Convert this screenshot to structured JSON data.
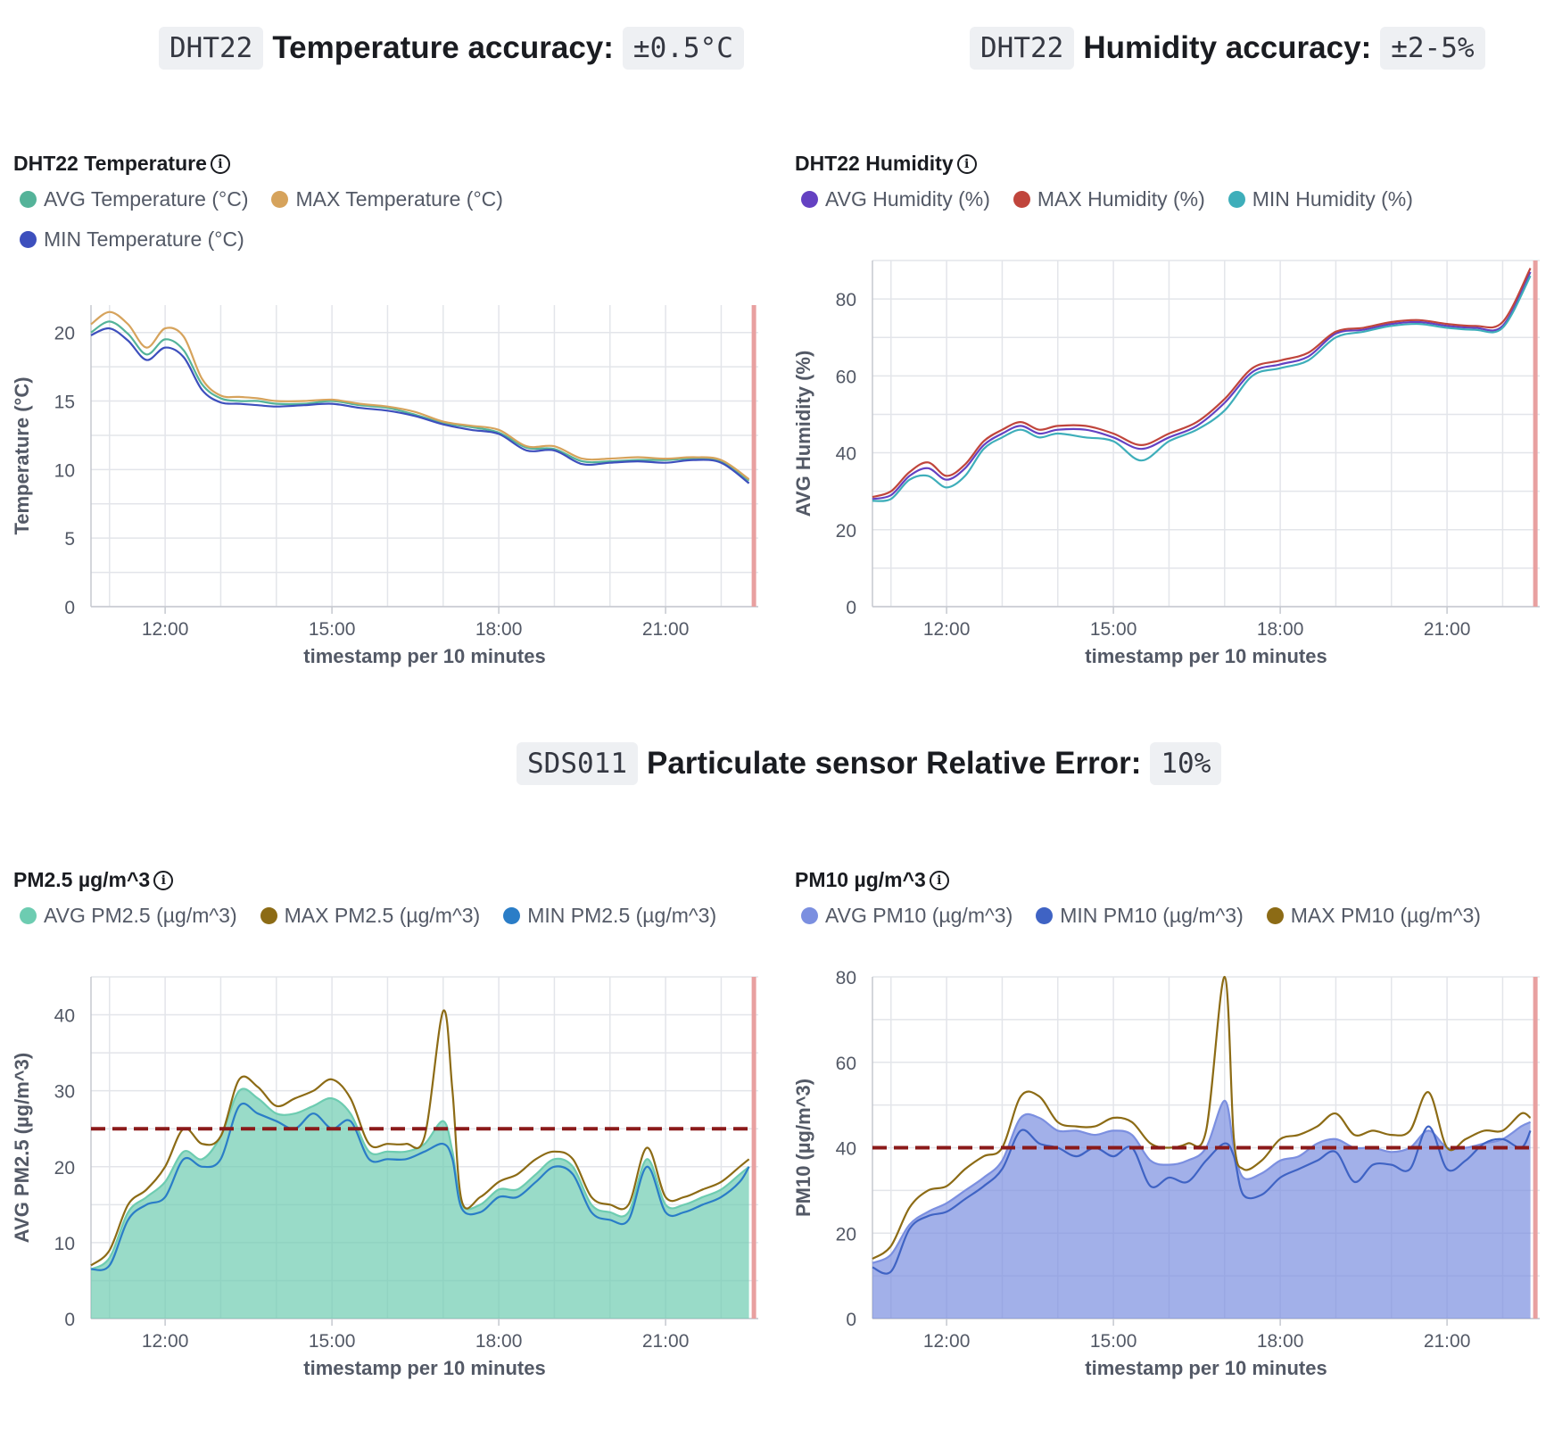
{
  "banners": {
    "temp": {
      "sensor": "DHT22",
      "label": "Temperature accuracy:",
      "value": "±0.5°C"
    },
    "hum": {
      "sensor": "DHT22",
      "label": "Humidity accuracy:",
      "value": "±2-5%"
    },
    "pm": {
      "sensor": "SDS011",
      "label": "Particulate sensor Relative Error:",
      "value": "10%"
    }
  },
  "colors": {
    "avg_temp": "#54b399",
    "max_temp": "#d6a35c",
    "min_temp": "#3d4fbd",
    "avg_hum": "#6441c2",
    "max_hum": "#c0453c",
    "min_hum": "#3eaeba",
    "avg_pm25": "#6dccb1",
    "max_pm25": "#8c6b15",
    "min_pm25": "#2a7dc7",
    "avg_pm10": "#7b8fe0",
    "min_pm10": "#3f63c4",
    "max_pm10": "#8c6b15",
    "threshold": "#8b1a1a",
    "now_marker": "#e8a0a0"
  },
  "chart_data": [
    {
      "id": "temp",
      "type": "line",
      "title": "DHT22 Temperature",
      "xlabel": "timestamp per 10 minutes",
      "ylabel": "Temperature (°C)",
      "x_ticks": [
        "12:00",
        "15:00",
        "18:00",
        "21:00"
      ],
      "y_ticks": [
        0,
        5,
        10,
        15,
        20
      ],
      "ylim": [
        0,
        22
      ],
      "grid": true,
      "legend": "top",
      "x": [
        "10:40",
        "11:00",
        "11:20",
        "11:40",
        "12:00",
        "12:20",
        "12:40",
        "13:00",
        "13:20",
        "13:40",
        "14:00",
        "14:30",
        "15:00",
        "15:30",
        "16:00",
        "16:30",
        "17:00",
        "17:30",
        "18:00",
        "18:30",
        "19:00",
        "19:30",
        "20:00",
        "20:30",
        "21:00",
        "21:30",
        "22:00",
        "22:30"
      ],
      "series": [
        {
          "name": "AVG Temperature (°C)",
          "color_key": "avg_temp",
          "area": false,
          "values": [
            20,
            20.8,
            19.9,
            18.4,
            19.5,
            18.7,
            16.2,
            15.2,
            15.0,
            15.0,
            14.8,
            14.8,
            15.0,
            14.7,
            14.5,
            14.0,
            13.4,
            13.1,
            12.7,
            11.6,
            11.5,
            10.6,
            10.6,
            10.7,
            10.7,
            10.8,
            10.6,
            9.2
          ]
        },
        {
          "name": "MAX Temperature (°C)",
          "color_key": "max_temp",
          "area": false,
          "values": [
            20.6,
            21.5,
            20.6,
            18.9,
            20.3,
            19.7,
            16.6,
            15.4,
            15.3,
            15.2,
            15.0,
            15.0,
            15.1,
            14.8,
            14.6,
            14.2,
            13.5,
            13.2,
            12.9,
            11.7,
            11.7,
            10.8,
            10.8,
            10.9,
            10.8,
            10.9,
            10.7,
            9.3
          ]
        },
        {
          "name": "MIN Temperature (°C)",
          "color_key": "min_temp",
          "area": false,
          "values": [
            19.8,
            20.3,
            19.4,
            18.0,
            18.9,
            18.2,
            15.8,
            14.9,
            14.8,
            14.7,
            14.6,
            14.7,
            14.8,
            14.5,
            14.3,
            13.9,
            13.3,
            12.9,
            12.6,
            11.4,
            11.4,
            10.4,
            10.5,
            10.6,
            10.5,
            10.7,
            10.5,
            9.0
          ]
        }
      ]
    },
    {
      "id": "hum",
      "type": "line",
      "title": "DHT22 Humidity",
      "xlabel": "timestamp per 10 minutes",
      "ylabel": "AVG Humidity (%)",
      "x_ticks": [
        "12:00",
        "15:00",
        "18:00",
        "21:00"
      ],
      "y_ticks": [
        0,
        20,
        40,
        60,
        80
      ],
      "ylim": [
        0,
        90
      ],
      "grid": true,
      "legend": "top",
      "x": [
        "10:40",
        "11:00",
        "11:20",
        "11:40",
        "12:00",
        "12:20",
        "12:40",
        "13:00",
        "13:20",
        "13:40",
        "14:00",
        "14:30",
        "15:00",
        "15:30",
        "16:00",
        "16:30",
        "17:00",
        "17:30",
        "18:00",
        "18:30",
        "19:00",
        "19:30",
        "20:00",
        "20:30",
        "21:00",
        "21:30",
        "22:00",
        "22:30"
      ],
      "series": [
        {
          "name": "AVG Humidity (%)",
          "color_key": "avg_hum",
          "area": false,
          "values": [
            28,
            29,
            34,
            36,
            33,
            36,
            42,
            45,
            47,
            45,
            46,
            46,
            44,
            41,
            44,
            47,
            53,
            61,
            63,
            65,
            71,
            72,
            73.5,
            74,
            73,
            72.5,
            73,
            87
          ]
        },
        {
          "name": "MAX Humidity (%)",
          "color_key": "max_hum",
          "area": false,
          "values": [
            28.5,
            30,
            35,
            37.5,
            34,
            37,
            43,
            46,
            48,
            46,
            47,
            47,
            45,
            42,
            45,
            48,
            54,
            62,
            64,
            66,
            71.5,
            72.5,
            74,
            74.5,
            73.5,
            73,
            74,
            88
          ]
        },
        {
          "name": "MIN Humidity (%)",
          "color_key": "min_hum",
          "area": false,
          "values": [
            27.5,
            28,
            33,
            34,
            31,
            34,
            41,
            44,
            46,
            44,
            45,
            44,
            43,
            38,
            43,
            46,
            51,
            60,
            62,
            64,
            70,
            71.5,
            73,
            73.5,
            72.5,
            72,
            72.5,
            86
          ]
        }
      ]
    },
    {
      "id": "pm25",
      "type": "area",
      "title": "PM2.5 µg/m^3",
      "xlabel": "timestamp per 10 minutes",
      "ylabel": "AVG PM2.5 (µg/m^3)",
      "x_ticks": [
        "12:00",
        "15:00",
        "18:00",
        "21:00"
      ],
      "y_ticks": [
        0,
        10,
        20,
        30,
        40
      ],
      "ylim": [
        0,
        45
      ],
      "grid": true,
      "legend": "top",
      "threshold": 25,
      "x": [
        "10:40",
        "11:00",
        "11:20",
        "11:40",
        "12:00",
        "12:20",
        "12:40",
        "13:00",
        "13:20",
        "13:40",
        "14:00",
        "14:20",
        "14:40",
        "15:00",
        "15:20",
        "15:40",
        "16:00",
        "16:20",
        "16:40",
        "17:00",
        "17:10",
        "17:20",
        "17:40",
        "18:00",
        "18:20",
        "18:40",
        "19:00",
        "19:20",
        "19:40",
        "20:00",
        "20:20",
        "20:40",
        "21:00",
        "21:20",
        "21:40",
        "22:00",
        "22:20",
        "22:30"
      ],
      "series": [
        {
          "name": "AVG PM2.5 (µg/m^3)",
          "color_key": "avg_pm25",
          "area": true,
          "values": [
            6.5,
            8,
            14,
            16,
            18,
            22,
            21,
            24,
            30,
            29,
            27,
            27,
            28,
            29,
            27,
            22,
            22,
            22,
            23,
            26,
            22,
            15,
            15,
            17,
            17,
            19,
            21,
            20,
            15,
            14,
            14,
            21,
            15,
            15,
            16,
            17,
            19,
            20
          ]
        },
        {
          "name": "MAX PM2.5 (µg/m^3)",
          "color_key": "max_pm25",
          "area": false,
          "values": [
            7,
            9,
            15,
            17,
            20,
            25,
            23,
            24,
            31.5,
            30.5,
            28,
            29,
            30,
            31.5,
            29,
            23,
            23,
            23,
            24,
            40.5,
            30,
            15.5,
            16,
            18,
            19,
            21,
            22,
            21,
            16,
            15,
            15,
            22.5,
            16,
            16,
            17,
            18,
            20,
            21
          ]
        },
        {
          "name": "MIN PM2.5 (µg/m^3)",
          "color_key": "min_pm25",
          "area": false,
          "values": [
            6.5,
            7,
            13,
            15,
            16,
            21,
            20,
            21,
            28,
            27,
            26,
            25,
            27,
            25,
            26,
            21,
            21,
            21,
            22,
            23,
            21,
            14.5,
            14,
            16,
            16,
            18,
            20,
            19,
            14,
            13,
            13,
            20,
            14,
            14,
            15,
            16,
            18,
            20
          ]
        }
      ]
    },
    {
      "id": "pm10",
      "type": "area",
      "title": "PM10 µg/m^3",
      "xlabel": "timestamp per 10 minutes",
      "ylabel": "PM10 (µg/m^3)",
      "x_ticks": [
        "12:00",
        "15:00",
        "18:00",
        "21:00"
      ],
      "y_ticks": [
        0,
        20,
        40,
        60,
        80
      ],
      "ylim": [
        0,
        80
      ],
      "grid": true,
      "legend": "top",
      "threshold": 40,
      "x": [
        "10:40",
        "11:00",
        "11:20",
        "11:40",
        "12:00",
        "12:20",
        "12:40",
        "13:00",
        "13:20",
        "13:40",
        "14:00",
        "14:20",
        "14:40",
        "15:00",
        "15:20",
        "15:40",
        "16:00",
        "16:20",
        "16:40",
        "17:00",
        "17:10",
        "17:20",
        "17:40",
        "18:00",
        "18:20",
        "18:40",
        "19:00",
        "19:20",
        "19:40",
        "20:00",
        "20:20",
        "20:40",
        "21:00",
        "21:20",
        "21:40",
        "22:00",
        "22:20",
        "22:30"
      ],
      "series": [
        {
          "name": "AVG PM10 (µg/m^3)",
          "color_key": "avg_pm10",
          "area": true,
          "values": [
            13,
            15,
            22,
            25,
            27,
            30,
            33,
            37,
            47,
            47,
            44,
            44,
            43,
            44,
            43,
            37,
            36,
            37,
            40,
            51,
            40,
            33,
            34,
            37,
            38,
            41,
            42,
            40,
            40,
            39,
            40,
            44,
            40,
            40,
            41,
            42,
            45,
            46
          ]
        },
        {
          "name": "MIN PM10 (µg/m^3)",
          "color_key": "min_pm10",
          "area": false,
          "values": [
            12,
            11,
            21,
            24,
            25,
            28,
            31,
            35,
            44,
            41,
            40,
            38,
            40,
            38,
            40,
            31,
            33,
            32,
            37,
            41,
            38,
            29,
            29,
            33,
            35,
            37,
            39,
            32,
            36,
            36,
            35,
            45,
            35,
            37,
            41,
            42,
            40,
            44
          ]
        },
        {
          "name": "MAX PM10 (µg/m^3)",
          "color_key": "max_pm10",
          "area": false,
          "values": [
            14,
            17,
            26,
            30,
            31,
            35,
            38,
            40,
            52,
            52,
            46,
            45,
            45,
            47,
            46,
            41,
            40,
            41,
            44,
            80,
            42,
            35,
            37,
            42,
            43,
            45,
            48,
            43,
            44,
            43,
            44,
            53,
            40,
            42,
            44,
            44,
            48,
            47
          ]
        }
      ]
    }
  ]
}
